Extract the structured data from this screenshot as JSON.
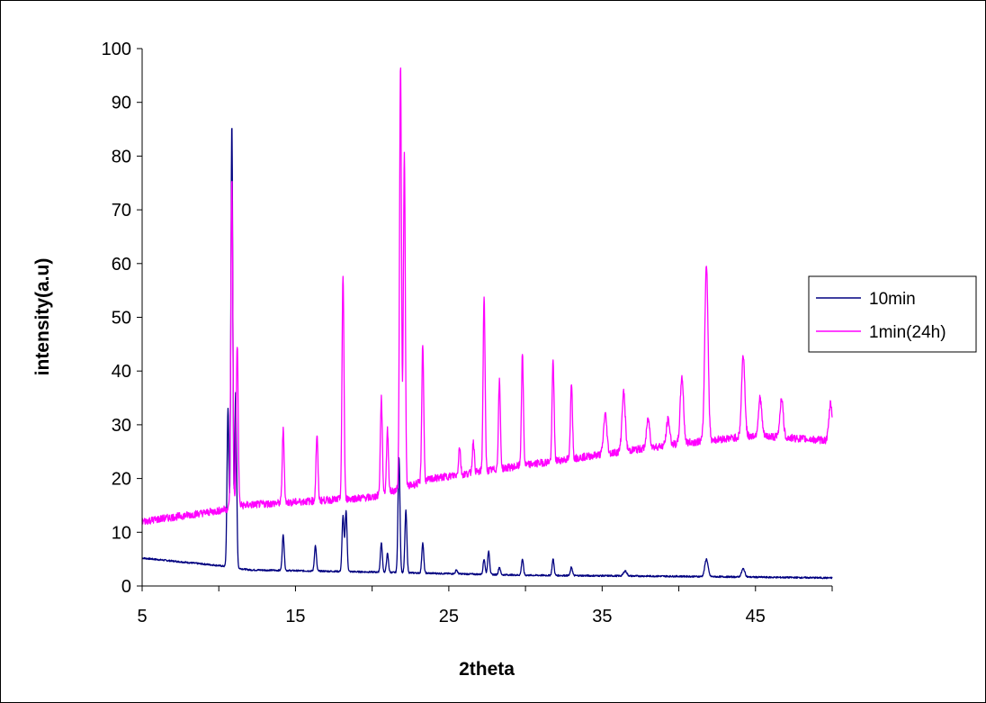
{
  "chart_data": {
    "type": "line",
    "title": "",
    "xlabel": "2theta",
    "ylabel": "intensity(a.u)",
    "xlim": [
      5,
      50
    ],
    "ylim": [
      0,
      100
    ],
    "x_ticks": [
      5,
      15,
      25,
      35,
      45
    ],
    "y_ticks": [
      0,
      10,
      20,
      30,
      40,
      50,
      60,
      70,
      80,
      90,
      100
    ],
    "grid": false,
    "legend_position": "right",
    "series": [
      {
        "name": "10min",
        "color": "#000080",
        "peaks": [
          [
            10.6,
            33
          ],
          [
            10.85,
            86
          ],
          [
            11.1,
            36
          ],
          [
            14.2,
            9.5
          ],
          [
            16.3,
            7.5
          ],
          [
            18.1,
            13
          ],
          [
            18.3,
            14
          ],
          [
            20.6,
            8
          ],
          [
            21.0,
            6
          ],
          [
            21.75,
            24
          ],
          [
            22.2,
            14
          ],
          [
            23.3,
            8
          ],
          [
            25.5,
            3
          ],
          [
            27.3,
            5
          ],
          [
            27.6,
            6.5
          ],
          [
            28.3,
            3.5
          ],
          [
            29.8,
            5
          ],
          [
            31.8,
            5
          ],
          [
            33.0,
            3.5
          ],
          [
            36.5,
            2.8
          ],
          [
            41.8,
            5
          ],
          [
            44.2,
            3.2
          ]
        ],
        "baseline": [
          [
            5,
            5.2
          ],
          [
            10,
            3.8
          ],
          [
            12,
            3.0
          ],
          [
            20,
            2.6
          ],
          [
            30,
            2.0
          ],
          [
            40,
            1.8
          ],
          [
            50,
            1.5
          ]
        ]
      },
      {
        "name": "1min(24h)",
        "color": "#ff00ff",
        "peaks": [
          [
            10.85,
            76
          ],
          [
            11.2,
            45
          ],
          [
            14.2,
            29
          ],
          [
            16.4,
            28
          ],
          [
            18.1,
            58
          ],
          [
            20.6,
            35
          ],
          [
            21.0,
            29
          ],
          [
            21.85,
            97
          ],
          [
            22.1,
            80
          ],
          [
            23.3,
            45
          ],
          [
            25.7,
            26
          ],
          [
            26.6,
            27
          ],
          [
            27.3,
            54
          ],
          [
            28.3,
            38
          ],
          [
            29.8,
            43
          ],
          [
            31.8,
            42
          ],
          [
            33.0,
            38
          ],
          [
            35.2,
            32
          ],
          [
            36.4,
            36
          ],
          [
            38.0,
            31
          ],
          [
            39.3,
            31
          ],
          [
            40.2,
            39
          ],
          [
            41.8,
            60
          ],
          [
            44.2,
            43
          ],
          [
            45.3,
            35
          ],
          [
            46.7,
            35
          ],
          [
            49.9,
            34
          ]
        ],
        "baseline": [
          [
            5,
            12
          ],
          [
            10,
            14
          ],
          [
            11.5,
            15
          ],
          [
            20,
            16.5
          ],
          [
            24,
            20
          ],
          [
            30,
            22.5
          ],
          [
            35,
            24.5
          ],
          [
            40,
            26.5
          ],
          [
            45,
            28
          ],
          [
            50,
            27
          ]
        ]
      }
    ]
  }
}
